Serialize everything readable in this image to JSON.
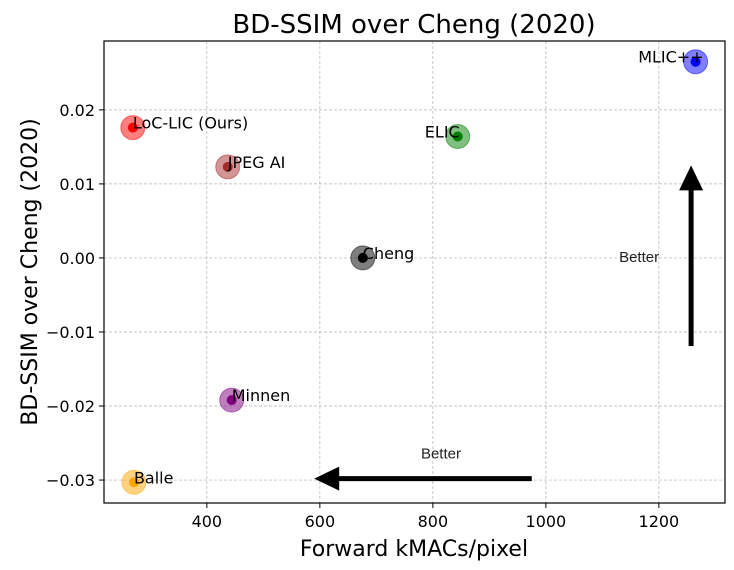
{
  "chart_data": {
    "type": "scatter",
    "title": "BD-SSIM over Cheng (2020)",
    "xlabel": "Forward kMACs/pixel",
    "ylabel": "BD-SSIM over Cheng (2020)",
    "xlim": [
      218,
      1317
    ],
    "ylim": [
      -0.0331,
      0.0293
    ],
    "xticks": [
      400,
      600,
      800,
      1000,
      1200
    ],
    "xtick_labels": [
      "400",
      "600",
      "800",
      "1000",
      "1200"
    ],
    "yticks": [
      0.02,
      0.01,
      0.0,
      -0.01,
      -0.02,
      -0.03
    ],
    "ytick_labels": [
      "0.02",
      "0.01",
      "0.00",
      "−0.01",
      "−0.02",
      "−0.03"
    ],
    "grid": true,
    "legend": null,
    "points": [
      {
        "name": "LoC-LIC (Ours)",
        "x": 269,
        "y": 0.0176,
        "color": "#ff0000"
      },
      {
        "name": "JPEG AI",
        "x": 437,
        "y": 0.0123,
        "color": "#a52a2a"
      },
      {
        "name": "ELIC",
        "x": 844,
        "y": 0.0164,
        "color": "#008000"
      },
      {
        "name": "MLIC++",
        "x": 1265,
        "y": 0.0265,
        "color": "#0000ff"
      },
      {
        "name": "Cheng",
        "x": 676,
        "y": 0.0,
        "color": "#000000"
      },
      {
        "name": "Minnen",
        "x": 444,
        "y": -0.0192,
        "color": "#800080"
      },
      {
        "name": "Balle",
        "x": 271,
        "y": -0.0303,
        "color": "#ffa500"
      }
    ],
    "annotations": [
      {
        "text": "Better",
        "direction": "left",
        "arrow_from": [
          975,
          -0.0298
        ],
        "arrow_to": [
          590,
          -0.0298
        ]
      },
      {
        "text": "Better",
        "direction": "up",
        "arrow_from": [
          1257,
          -0.0119
        ],
        "arrow_to": [
          1257,
          0.0125
        ]
      }
    ]
  }
}
